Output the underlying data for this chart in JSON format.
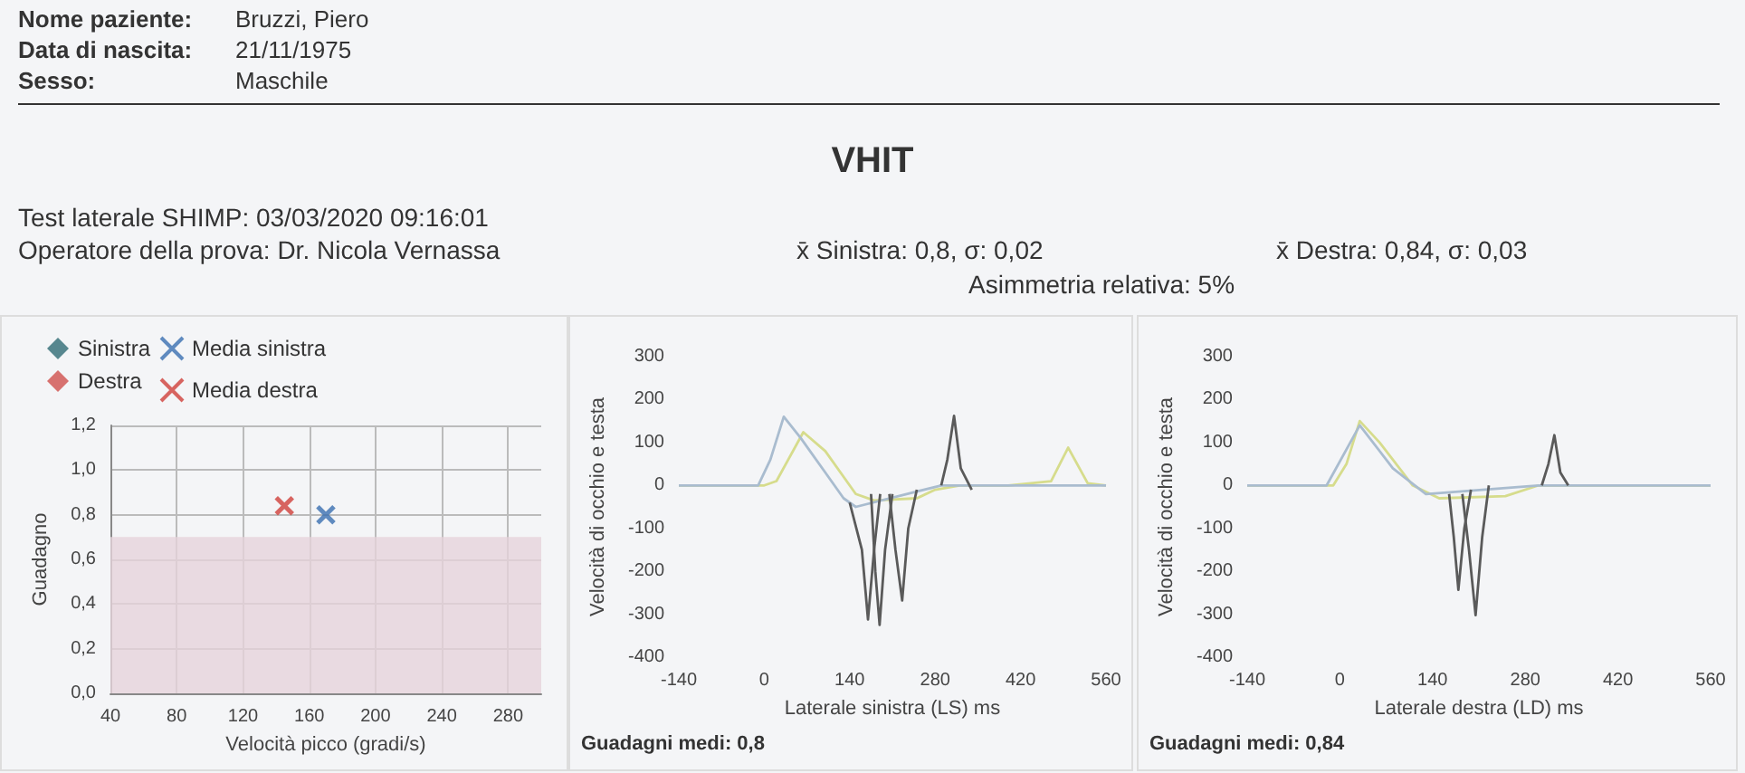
{
  "chart_data": [
    {
      "type": "scatter",
      "annotations": [
        "Nome paziente:",
        "Bruzzi, Piero",
        "Data di nascita:",
        "21/11/1975",
        "Sesso:",
        "Maschile",
        "Test laterale SHIMP: 03/03/2020 09:16:01",
        "Operatore della prova: Dr. Nicola Vernassa",
        "x̄ Sinistra: 0,8, σ: 0,02",
        "x̄ Destra: 0,84, σ: 0,03",
        "Asimmetria relativa: 5%"
      ],
      "xlabel": "Velocità picco (gradi/s)",
      "ylabel": "Guadagno",
      "xlim": [
        40,
        300
      ],
      "xticks": [
        40,
        80,
        120,
        160,
        200,
        240,
        280
      ],
      "ylim": [
        0,
        1.2
      ],
      "yticks": [
        {
          "value": 0,
          "label": "0,0"
        },
        {
          "value": 0.2,
          "label": "0,2"
        },
        {
          "value": 0.4,
          "label": "0,4"
        },
        {
          "value": 0.6,
          "label": "0,6"
        },
        {
          "value": 0.8,
          "label": "0,8"
        },
        {
          "value": 1.0,
          "label": "1,0"
        },
        {
          "value": 1.2,
          "label": "1,2"
        }
      ],
      "grid": true,
      "legend": "top",
      "bands": [
        {
          "axis": "y",
          "from": 0,
          "to": 0.7,
          "color": "#e6d3db"
        }
      ],
      "series": [
        {
          "name": "Sinistra",
          "color": "#2f6b74",
          "marker": "diamond"
        },
        {
          "name": "Destra",
          "color": "#d0504c",
          "marker": "diamond"
        },
        {
          "name": "Media sinistra",
          "color": "#3a6fb0",
          "marker": "cross",
          "x": [
            170
          ],
          "values": [
            0.8
          ]
        },
        {
          "name": "Media destra",
          "color": "#d0403a",
          "marker": "cross",
          "x": [
            145
          ],
          "values": [
            0.84
          ]
        }
      ]
    },
    {
      "type": "line",
      "title": "VHIT",
      "xlabel": "Laterale sinistra (LS) ms",
      "ylabel": "Velocità di occhio e testa",
      "annotations": [
        "Guadagni medi: 0,8"
      ],
      "xlim": [
        -140,
        560
      ],
      "xticks": [
        -140,
        0,
        140,
        280,
        420,
        560
      ],
      "ylim": [
        -400,
        300
      ],
      "yticks": [
        -400,
        -300,
        -200,
        -100,
        0,
        100,
        200,
        300
      ],
      "series": [
        {
          "color": "#d6dc8c",
          "x": [
            -140,
            0,
            20,
            64,
            100,
            150,
            180,
            250,
            280,
            320,
            400,
            470,
            498,
            530,
            560
          ],
          "values": [
            0,
            0,
            10,
            124,
            80,
            -20,
            -35,
            -30,
            -10,
            0,
            0,
            10,
            88,
            5,
            0
          ]
        },
        {
          "color": "#a9bccf",
          "x": [
            -140,
            -10,
            10,
            32,
            60,
            100,
            130,
            150,
            290,
            560
          ],
          "values": [
            0,
            0,
            60,
            160,
            110,
            30,
            -30,
            -50,
            0,
            0
          ]
        },
        {
          "color": "#5a5a5a",
          "x": [
            140,
            160,
            170,
            180,
            190
          ],
          "values": [
            -40,
            -150,
            -312,
            -150,
            -20
          ]
        },
        {
          "color": "#5a5a5a",
          "x": [
            175,
            182,
            189,
            198,
            210
          ],
          "values": [
            -20,
            -200,
            -325,
            -150,
            -20
          ]
        },
        {
          "color": "#5a5a5a",
          "x": [
            205,
            215,
            226,
            236,
            250
          ],
          "values": [
            -20,
            -150,
            -268,
            -100,
            -10
          ]
        },
        {
          "color": "#5a5a5a",
          "x": [
            290,
            300,
            311,
            322,
            340
          ],
          "values": [
            0,
            60,
            162,
            40,
            -10
          ]
        }
      ]
    },
    {
      "type": "line",
      "xlabel": "Laterale destra (LD) ms",
      "ylabel": "Velocità di occhio e testa",
      "annotations": [
        "Guadagni medi: 0,84"
      ],
      "xlim": [
        -140,
        560
      ],
      "xticks": [
        -140,
        0,
        140,
        280,
        420,
        560
      ],
      "ylim": [
        -400,
        300
      ],
      "yticks": [
        -400,
        -300,
        -200,
        -100,
        0,
        100,
        200,
        300
      ],
      "series": [
        {
          "color": "#d6dc8c",
          "x": [
            -140,
            -10,
            10,
            30,
            60,
            110,
            150,
            250,
            300,
            350,
            560
          ],
          "values": [
            0,
            0,
            50,
            150,
            100,
            0,
            -30,
            -25,
            0,
            0,
            0
          ]
        },
        {
          "color": "#a9bccf",
          "x": [
            -140,
            -20,
            30,
            80,
            130,
            300,
            560
          ],
          "values": [
            0,
            0,
            140,
            40,
            -20,
            0,
            0
          ]
        },
        {
          "color": "#5a5a5a",
          "x": [
            165,
            172,
            179,
            188,
            198
          ],
          "values": [
            -20,
            -120,
            -243,
            -100,
            -10
          ]
        },
        {
          "color": "#5a5a5a",
          "x": [
            185,
            195,
            205,
            215,
            225
          ],
          "values": [
            -20,
            -150,
            -302,
            -120,
            0
          ]
        },
        {
          "color": "#5a5a5a",
          "x": [
            305,
            315,
            324,
            333,
            345
          ],
          "values": [
            0,
            50,
            117,
            30,
            0
          ]
        }
      ]
    }
  ]
}
